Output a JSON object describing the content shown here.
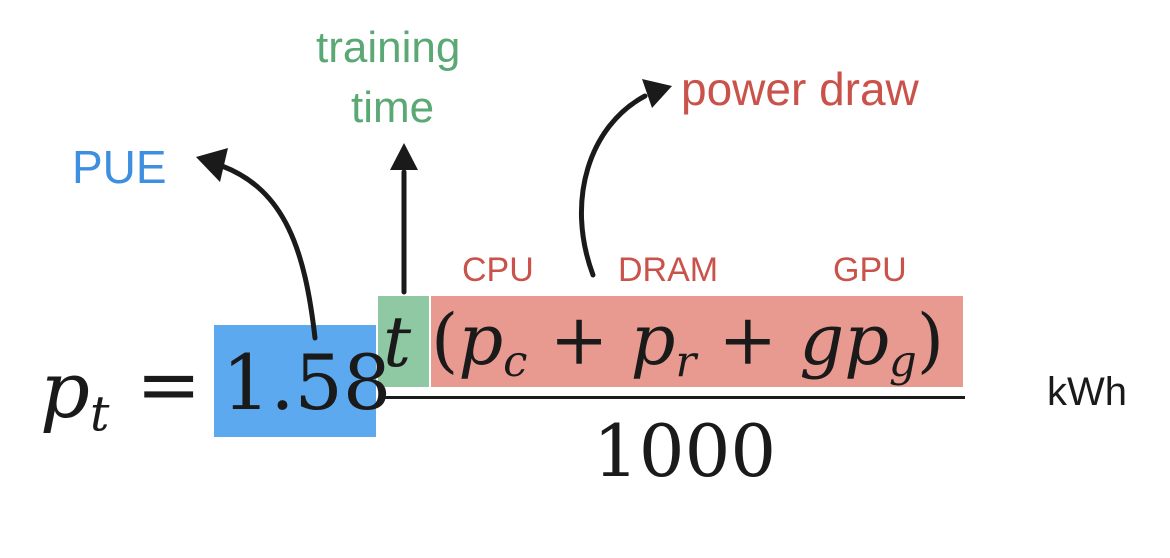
{
  "colors": {
    "blue": "#5da9ef",
    "blue_text": "#3d8fe0",
    "green_bg": "#8fc9a3",
    "green_text": "#5aa874",
    "red_bg": "#e89a90",
    "red_text": "#c9534b",
    "ink": "#1a1a1a"
  },
  "labels": {
    "pue": "PUE",
    "training_line1": "training",
    "training_line2": "time",
    "power_draw": "power draw",
    "cpu": "CPU",
    "dram": "DRAM",
    "gpu": "GPU",
    "unit": "kWh"
  },
  "equation": {
    "lhs_var": "p",
    "lhs_sub": "t",
    "equals": "=",
    "pue_value": "1.58",
    "time_var": "t",
    "open_paren": "(",
    "pc_var": "p",
    "pc_sub": "c",
    "plus1": "+",
    "pr_var": "p",
    "pr_sub": "r",
    "plus2": "+",
    "g_var": "g",
    "pg_var": "p",
    "pg_sub": "g",
    "close_paren": ")",
    "denominator": "1000"
  }
}
